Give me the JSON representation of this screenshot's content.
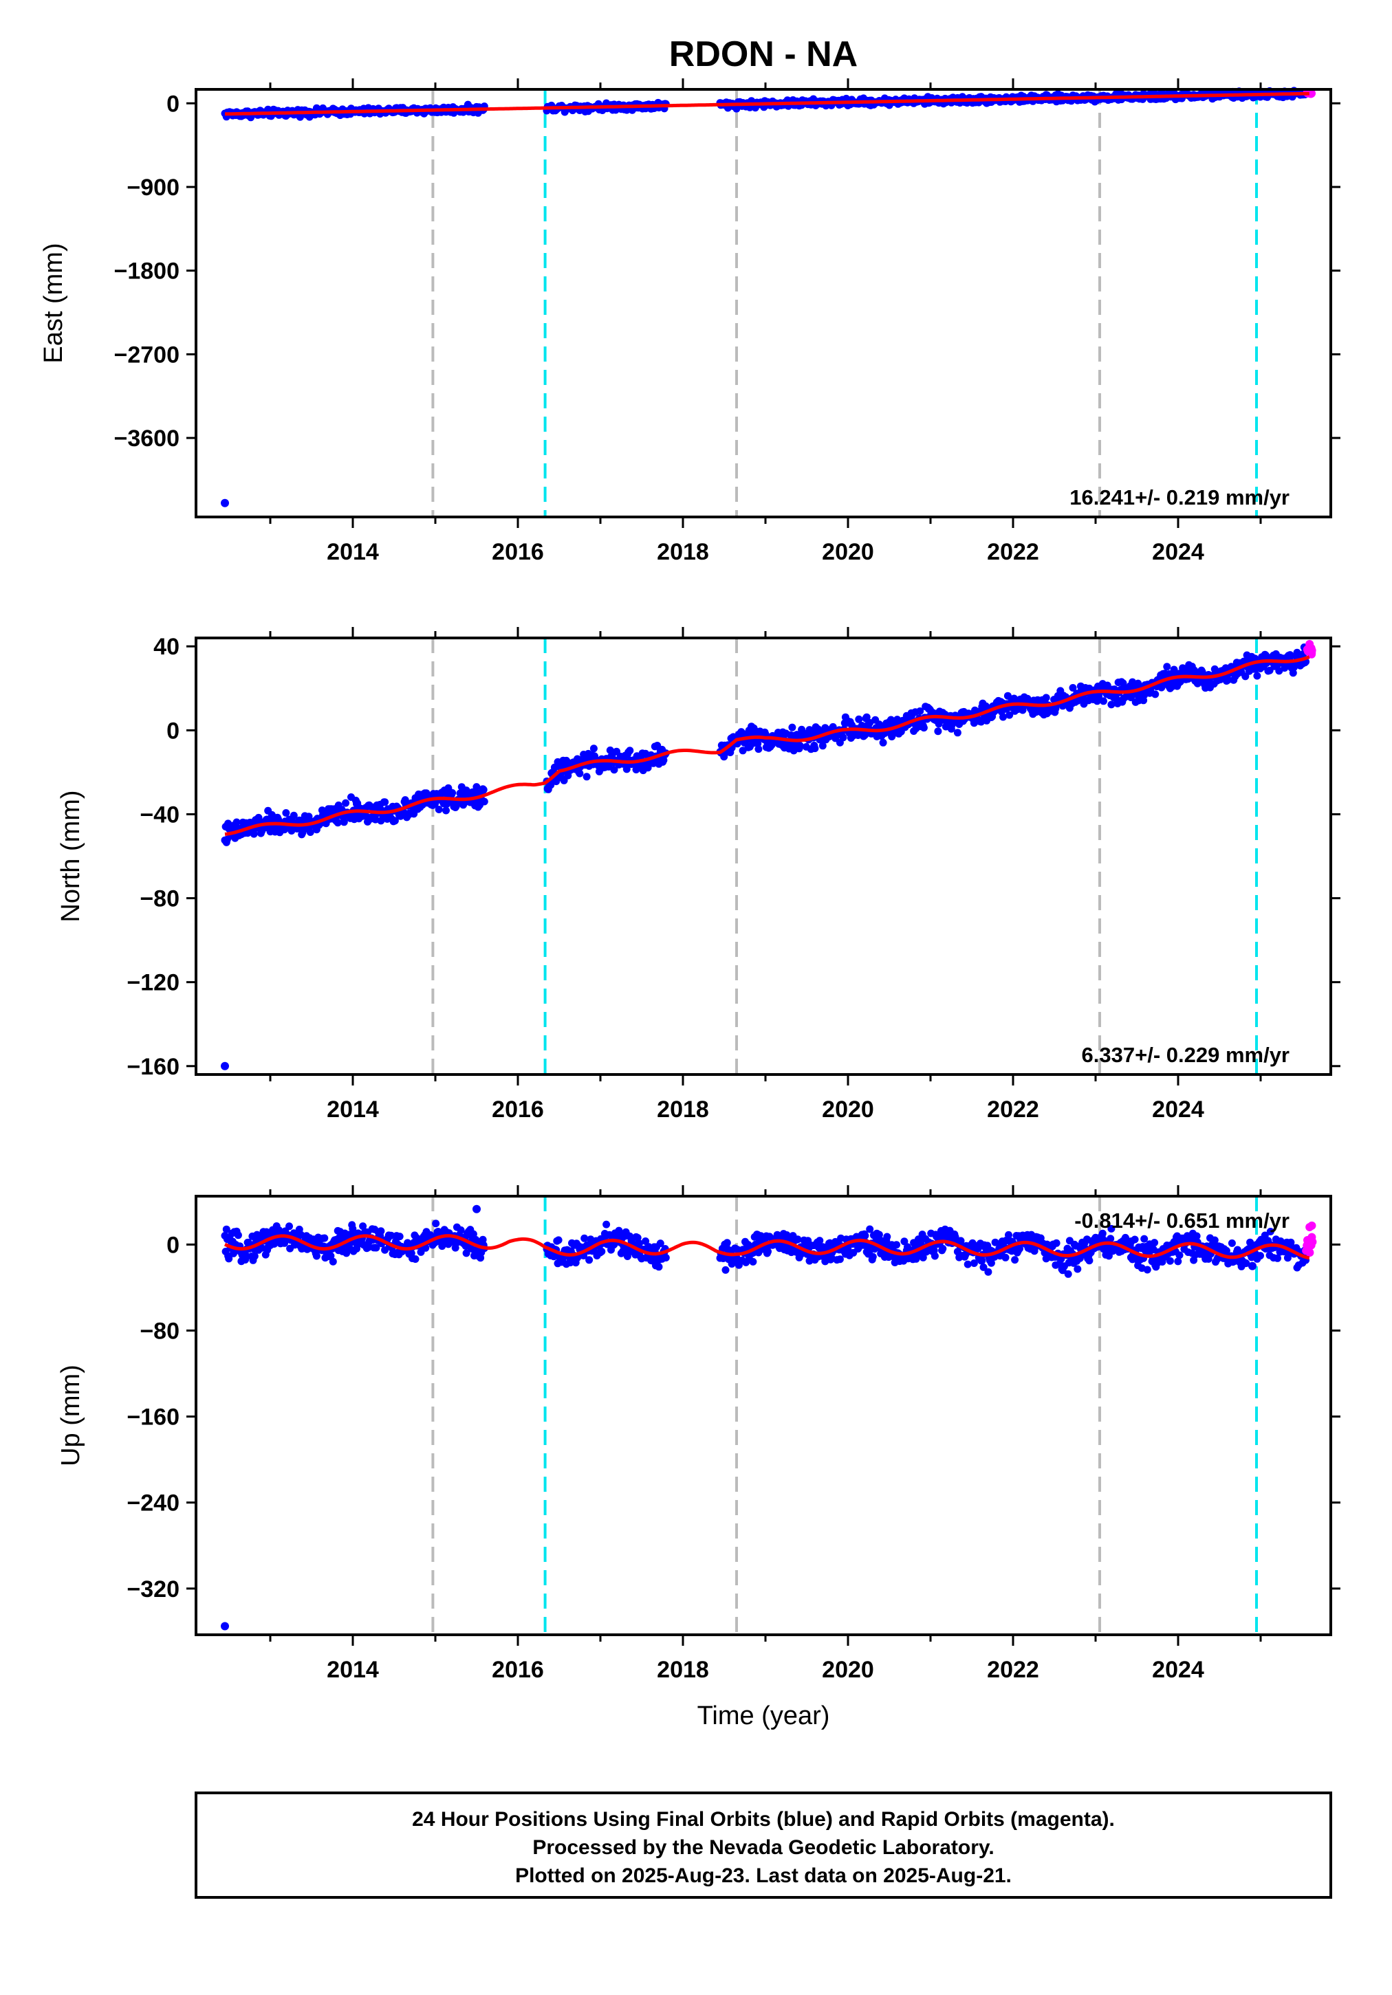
{
  "title": "RDON - NA",
  "colors": {
    "final_orbits": "#0000ff",
    "rapid_orbits": "#ff00ff",
    "model": "#ff0000",
    "equipment_change": "#bbbbbb",
    "earthquake": "#00e5ee"
  },
  "chart_data": [
    {
      "type": "scatter",
      "panel": "east",
      "ylabel": "East (mm)",
      "xlabel": "",
      "xlim": [
        2012.1,
        2025.85
      ],
      "ylim": [
        -4450,
        150
      ],
      "x_ticks": [
        2014,
        2016,
        2018,
        2020,
        2022,
        2024
      ],
      "y_ticks": [
        0,
        -900,
        -1800,
        -2700,
        -3600
      ],
      "rate_text": "16.241+/- 0.219 mm/yr",
      "vlines_gray": [
        2014.97,
        2018.65,
        2023.05
      ],
      "vlines_cyan": [
        2016.33,
        2024.95
      ],
      "outliers": [
        {
          "x": 2012.45,
          "y": -4300
        }
      ],
      "model": {
        "x": [
          2012.45,
          2025.6
        ],
        "y": [
          -115,
          105
        ],
        "seasonal_amp": 0,
        "seasonal_phase": 0
      },
      "final_orbit_points": {
        "x_ranges": [
          [
            2012.45,
            2015.6
          ],
          [
            2016.35,
            2017.8
          ],
          [
            2018.45,
            2025.55
          ]
        ],
        "spread": 18
      },
      "rapid_orbit_points": {
        "x_range": [
          2025.55,
          2025.63
        ],
        "y_range": [
          100,
          115
        ]
      },
      "series": [
        {
          "name": "Final Orbits"
        },
        {
          "name": "Rapid Orbits"
        }
      ]
    },
    {
      "type": "scatter",
      "panel": "north",
      "ylabel": "North (mm)",
      "xlabel": "",
      "xlim": [
        2012.1,
        2025.85
      ],
      "ylim": [
        -164,
        44
      ],
      "x_ticks": [
        2014,
        2016,
        2018,
        2020,
        2022,
        2024
      ],
      "y_ticks": [
        40,
        0,
        -40,
        -80,
        -120,
        -160
      ],
      "rate_text": "6.337+/- 0.229 mm/yr",
      "vlines_gray": [
        2014.97,
        2018.65,
        2023.05
      ],
      "vlines_cyan": [
        2016.33,
        2024.95
      ],
      "outliers": [
        {
          "x": 2012.45,
          "y": -160
        }
      ],
      "model": {
        "x": [
          2012.45,
          2013,
          2014,
          2015,
          2015.6,
          2016.2,
          2016.33,
          2016.5,
          2017,
          2017.5,
          2018,
          2018.45,
          2018.65,
          2019,
          2020,
          2021,
          2022,
          2023,
          2024,
          2024.95,
          2025.6
        ],
        "y": [
          -48,
          -46,
          -40,
          -34,
          -30,
          -26,
          -24,
          -18,
          -16,
          -13,
          -11,
          -9,
          -4,
          -5,
          -1,
          5,
          11,
          17,
          24,
          31,
          36
        ],
        "seasonal_amp": 1.5,
        "seasonal_phase": 0.3
      },
      "final_orbit_points": {
        "x_ranges": [
          [
            2012.45,
            2015.6
          ],
          [
            2016.35,
            2017.8
          ],
          [
            2018.45,
            2025.55
          ]
        ],
        "spread": 2.5
      },
      "rapid_orbit_points": {
        "x_range": [
          2025.55,
          2025.63
        ],
        "y_range": [
          36,
          42
        ]
      },
      "series": [
        {
          "name": "Final Orbits"
        },
        {
          "name": "Rapid Orbits"
        }
      ]
    },
    {
      "type": "scatter",
      "panel": "up",
      "ylabel": "Up (mm)",
      "xlabel": "Time (year)",
      "xlim": [
        2012.1,
        2025.85
      ],
      "ylim": [
        -363,
        45
      ],
      "x_ticks": [
        2014,
        2016,
        2018,
        2020,
        2022,
        2024
      ],
      "y_ticks": [
        0,
        -80,
        -160,
        -240,
        -320
      ],
      "rate_text": "-0.814+/- 0.651 mm/yr",
      "vlines_gray": [
        2014.97,
        2018.65,
        2023.05
      ],
      "vlines_cyan": [
        2016.33,
        2024.95
      ],
      "outliers": [
        {
          "x": 2012.45,
          "y": -355
        },
        {
          "x": 2015.5,
          "y": 33
        },
        {
          "x": 2024.9,
          "y": -20
        }
      ],
      "model": {
        "x": [
          2012.45,
          2015,
          2015.9,
          2016.33,
          2017,
          2018,
          2018.4,
          2018.65,
          2020,
          2022,
          2024,
          2025.6
        ],
        "y": [
          2,
          2,
          3,
          -5,
          -2,
          -3,
          -6,
          -3,
          -2,
          -4,
          -5,
          -7
        ],
        "seasonal_amp": 6,
        "seasonal_phase": 0.1
      },
      "final_orbit_points": {
        "x_ranges": [
          [
            2012.45,
            2015.6
          ],
          [
            2016.35,
            2017.8
          ],
          [
            2018.45,
            2025.55
          ]
        ],
        "spread": 6
      },
      "rapid_orbit_points": {
        "x_range": [
          2025.55,
          2025.63
        ],
        "y_range": [
          -10,
          18
        ]
      },
      "series": [
        {
          "name": "Final Orbits"
        },
        {
          "name": "Rapid Orbits"
        }
      ]
    }
  ],
  "footer": {
    "line1": "24 Hour Positions Using Final Orbits (blue) and Rapid Orbits (magenta).",
    "line2": "Processed by the Nevada Geodetic Laboratory.",
    "line3": "Plotted on 2025-Aug-23. Last data on 2025-Aug-21."
  }
}
